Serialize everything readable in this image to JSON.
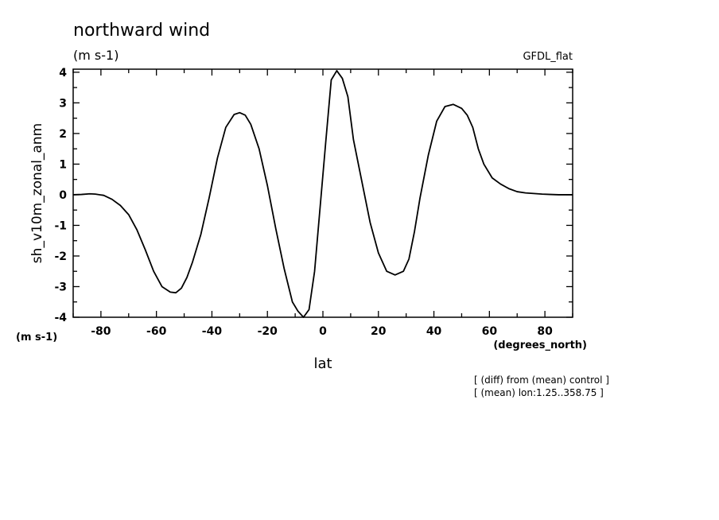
{
  "chart_data": {
    "type": "line",
    "title": "northward wind",
    "subtitle": "(m s-1)",
    "top_right_label": "GFDL_flat",
    "ylabel": "sh_v10m_zonal_anm",
    "yunits": "(m s-1)",
    "xlabel": "lat",
    "xunits": "(degrees_north)",
    "notes": [
      "[ (diff) from (mean) control ]",
      "[ (mean) lon:1.25..358.75 ]"
    ],
    "xlim": [
      -90,
      90
    ],
    "ylim": [
      -4,
      4.1
    ],
    "grid": false,
    "x_ticks": [
      -80,
      -60,
      -40,
      -20,
      0,
      20,
      40,
      60,
      80
    ],
    "x_tick_labels": [
      "-80",
      "-60",
      "-40",
      "-20",
      "0",
      "20",
      "40",
      "60",
      "80"
    ],
    "y_ticks": [
      -4,
      -3,
      -2,
      -1,
      0,
      1,
      2,
      3,
      4
    ],
    "y_tick_labels": [
      "-4",
      "-3",
      "-2",
      "-1",
      "0",
      "1",
      "2",
      "3",
      "4"
    ],
    "line_color": "#000000",
    "series": [
      {
        "x": [
          -90,
          -87,
          -84,
          -82,
          -79,
          -76,
          -73,
          -70,
          -67,
          -64,
          -61,
          -58,
          -55,
          -53,
          -51,
          -49,
          -47,
          -44,
          -41,
          -38,
          -35,
          -32,
          -30,
          -28,
          -26,
          -23,
          -20,
          -17,
          -14,
          -11,
          -9,
          -7,
          -5,
          -3,
          -1,
          1,
          3,
          5,
          7,
          9,
          11,
          13,
          15,
          17,
          20,
          23,
          26,
          29,
          31,
          33,
          35,
          38,
          41,
          44,
          47,
          50,
          52,
          54,
          56,
          58,
          61,
          64,
          67,
          70,
          73,
          76,
          79,
          82,
          85,
          88,
          90
        ],
        "y": [
          0.0,
          0.01,
          0.03,
          0.02,
          -0.02,
          -0.15,
          -0.35,
          -0.65,
          -1.15,
          -1.8,
          -2.5,
          -3.0,
          -3.18,
          -3.2,
          -3.05,
          -2.7,
          -2.2,
          -1.3,
          -0.1,
          1.2,
          2.2,
          2.62,
          2.68,
          2.6,
          2.3,
          1.5,
          0.3,
          -1.1,
          -2.4,
          -3.5,
          -3.8,
          -4.0,
          -3.75,
          -2.5,
          -0.4,
          1.7,
          3.75,
          4.05,
          3.8,
          3.2,
          1.8,
          0.9,
          0.0,
          -0.9,
          -1.9,
          -2.5,
          -2.62,
          -2.5,
          -2.1,
          -1.2,
          -0.1,
          1.3,
          2.4,
          2.88,
          2.95,
          2.82,
          2.6,
          2.2,
          1.5,
          1.0,
          0.55,
          0.35,
          0.2,
          0.1,
          0.06,
          0.04,
          0.02,
          0.01,
          0.0,
          0.0,
          0.0
        ]
      }
    ]
  }
}
